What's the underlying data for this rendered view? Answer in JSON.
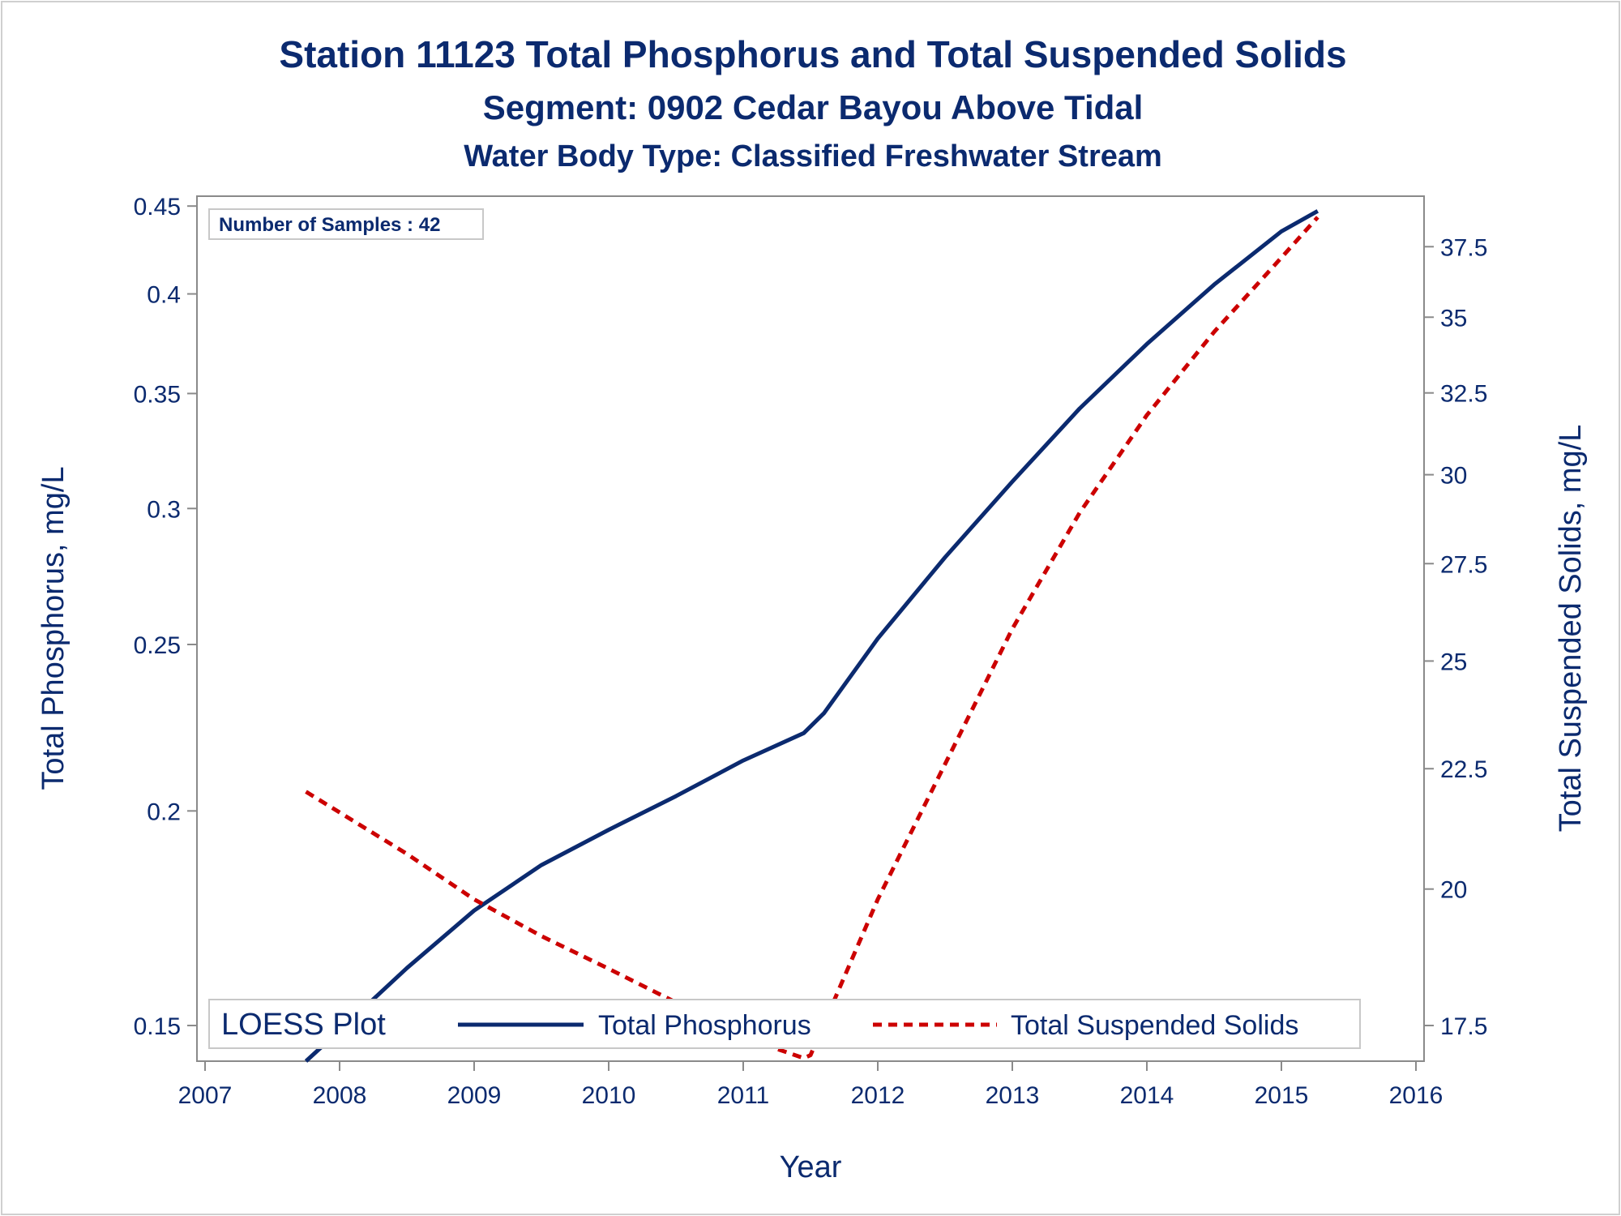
{
  "chart_data": {
    "type": "line",
    "title": "Station 11123  Total Phosphorus and Total Suspended Solids",
    "subtitle": "Segment: 0902  Cedar Bayou Above Tidal",
    "subtitle2": "Water Body Type: Classified Freshwater Stream",
    "xlabel": "Year",
    "ylabel_left": "Total Phosphorus, mg/L",
    "ylabel_right": "Total Suspended Solids, mg/L",
    "xlim": [
      2007,
      2016
    ],
    "x_ticks": [
      "2007",
      "2008",
      "2009",
      "2010",
      "2011",
      "2012",
      "2013",
      "2014",
      "2015",
      "2016"
    ],
    "y_left_scale": "log",
    "y_left_lim": [
      0.143,
      0.456
    ],
    "y_left_ticks": [
      "0.15",
      "0.2",
      "0.25",
      "0.3",
      "0.35",
      "0.4",
      "0.45"
    ],
    "y_right_scale": "log",
    "y_right_lim": [
      16.9,
      39.4
    ],
    "y_right_ticks": [
      "17.5",
      "20",
      "22.5",
      "25",
      "27.5",
      "30",
      "32.5",
      "35",
      "37.5"
    ],
    "inset_label": "Number of Samples : 42",
    "legend": {
      "title": "LOESS Plot",
      "placement": "bottom-inside",
      "entries": [
        "Total Phosphorus",
        "Total Suspended Solids"
      ]
    },
    "series": [
      {
        "name": "Total Phosphorus",
        "axis": "left",
        "color": "#0b2a6f",
        "style": "solid",
        "x": [
          2007.75,
          2008.0,
          2008.5,
          2009.0,
          2009.5,
          2010.0,
          2010.5,
          2011.0,
          2011.45,
          2011.6,
          2012.0,
          2012.5,
          2013.0,
          2013.5,
          2014.0,
          2014.5,
          2015.0,
          2015.27
        ],
        "y": [
          0.143,
          0.149,
          0.162,
          0.175,
          0.186,
          0.195,
          0.204,
          0.214,
          0.222,
          0.228,
          0.252,
          0.281,
          0.311,
          0.343,
          0.374,
          0.405,
          0.435,
          0.447
        ]
      },
      {
        "name": "Total Suspended Solids",
        "axis": "right",
        "color": "#cc0000",
        "style": "dashed",
        "x": [
          2007.75,
          2008.5,
          2009.0,
          2009.5,
          2010.0,
          2010.5,
          2011.0,
          2011.45,
          2011.5,
          2012.0,
          2012.5,
          2013.0,
          2013.5,
          2014.0,
          2014.5,
          2015.0,
          2015.27
        ],
        "y": [
          22.0,
          20.7,
          19.8,
          19.1,
          18.5,
          17.9,
          17.3,
          16.95,
          17.0,
          19.8,
          22.6,
          25.8,
          28.9,
          31.8,
          34.5,
          37.1,
          38.6
        ]
      }
    ]
  }
}
